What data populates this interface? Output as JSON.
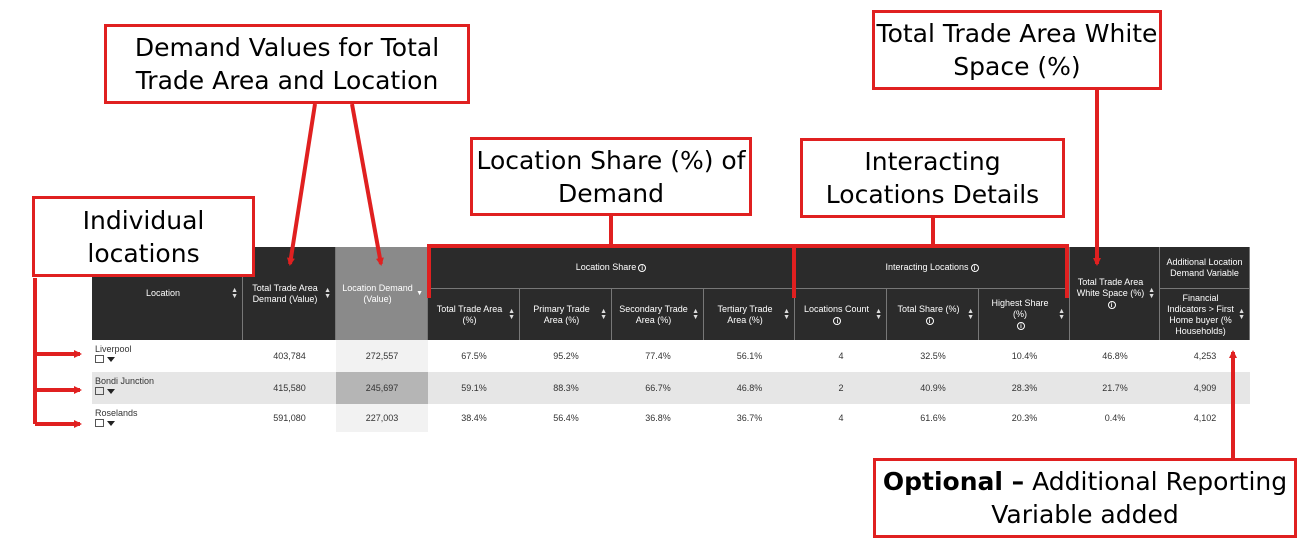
{
  "callouts": {
    "demand_values": "Demand Values for Total Trade Area and Location",
    "white_space": "Total Trade Area White Space (%)",
    "location_share": "Location Share (%) of Demand",
    "interacting": "Interacting Locations Details",
    "individual": "Individual locations",
    "optional_bold": "Optional –",
    "optional_rest": "Additional Reporting Variable added"
  },
  "colors": {
    "callout_border": "#e02020",
    "header_bg": "#2b2b2b",
    "selected_header": "#8a8a8a"
  },
  "table": {
    "headers": {
      "location": "Location",
      "tta_demand": "Total Trade Area Demand (Value)",
      "loc_demand": "Location Demand (Value)",
      "location_share": "Location Share",
      "share_tta": "Total Trade Area (%)",
      "share_primary": "Primary Trade Area (%)",
      "share_secondary": "Secondary Trade Area (%)",
      "share_tertiary": "Tertiary Trade Area (%)",
      "interacting": "Interacting Locations",
      "loc_count": "Locations Count",
      "total_share": "Total Share (%)",
      "highest_share": "Highest Share (%)",
      "white_space": "Total Trade Area White Space (%)",
      "additional": "Additional Location Demand Variable",
      "financial": "Financial Indicators > First Home buyer (% Households)"
    },
    "rows": [
      {
        "location": "Liverpool",
        "tta_demand": "403,784",
        "loc_demand": "272,557",
        "share_tta": "67.5%",
        "share_primary": "95.2%",
        "share_secondary": "77.4%",
        "share_tertiary": "56.1%",
        "loc_count": "4",
        "total_share": "32.5%",
        "highest_share": "10.4%",
        "white_space": "46.8%",
        "financial": "4,253"
      },
      {
        "location": "Bondi Junction",
        "tta_demand": "415,580",
        "loc_demand": "245,697",
        "share_tta": "59.1%",
        "share_primary": "88.3%",
        "share_secondary": "66.7%",
        "share_tertiary": "46.8%",
        "loc_count": "2",
        "total_share": "40.9%",
        "highest_share": "28.3%",
        "white_space": "21.7%",
        "financial": "4,909"
      },
      {
        "location": "Roselands",
        "tta_demand": "591,080",
        "loc_demand": "227,003",
        "share_tta": "38.4%",
        "share_primary": "56.4%",
        "share_secondary": "36.8%",
        "share_tertiary": "36.7%",
        "loc_count": "4",
        "total_share": "61.6%",
        "highest_share": "20.3%",
        "white_space": "0.4%",
        "financial": "4,102"
      }
    ]
  }
}
